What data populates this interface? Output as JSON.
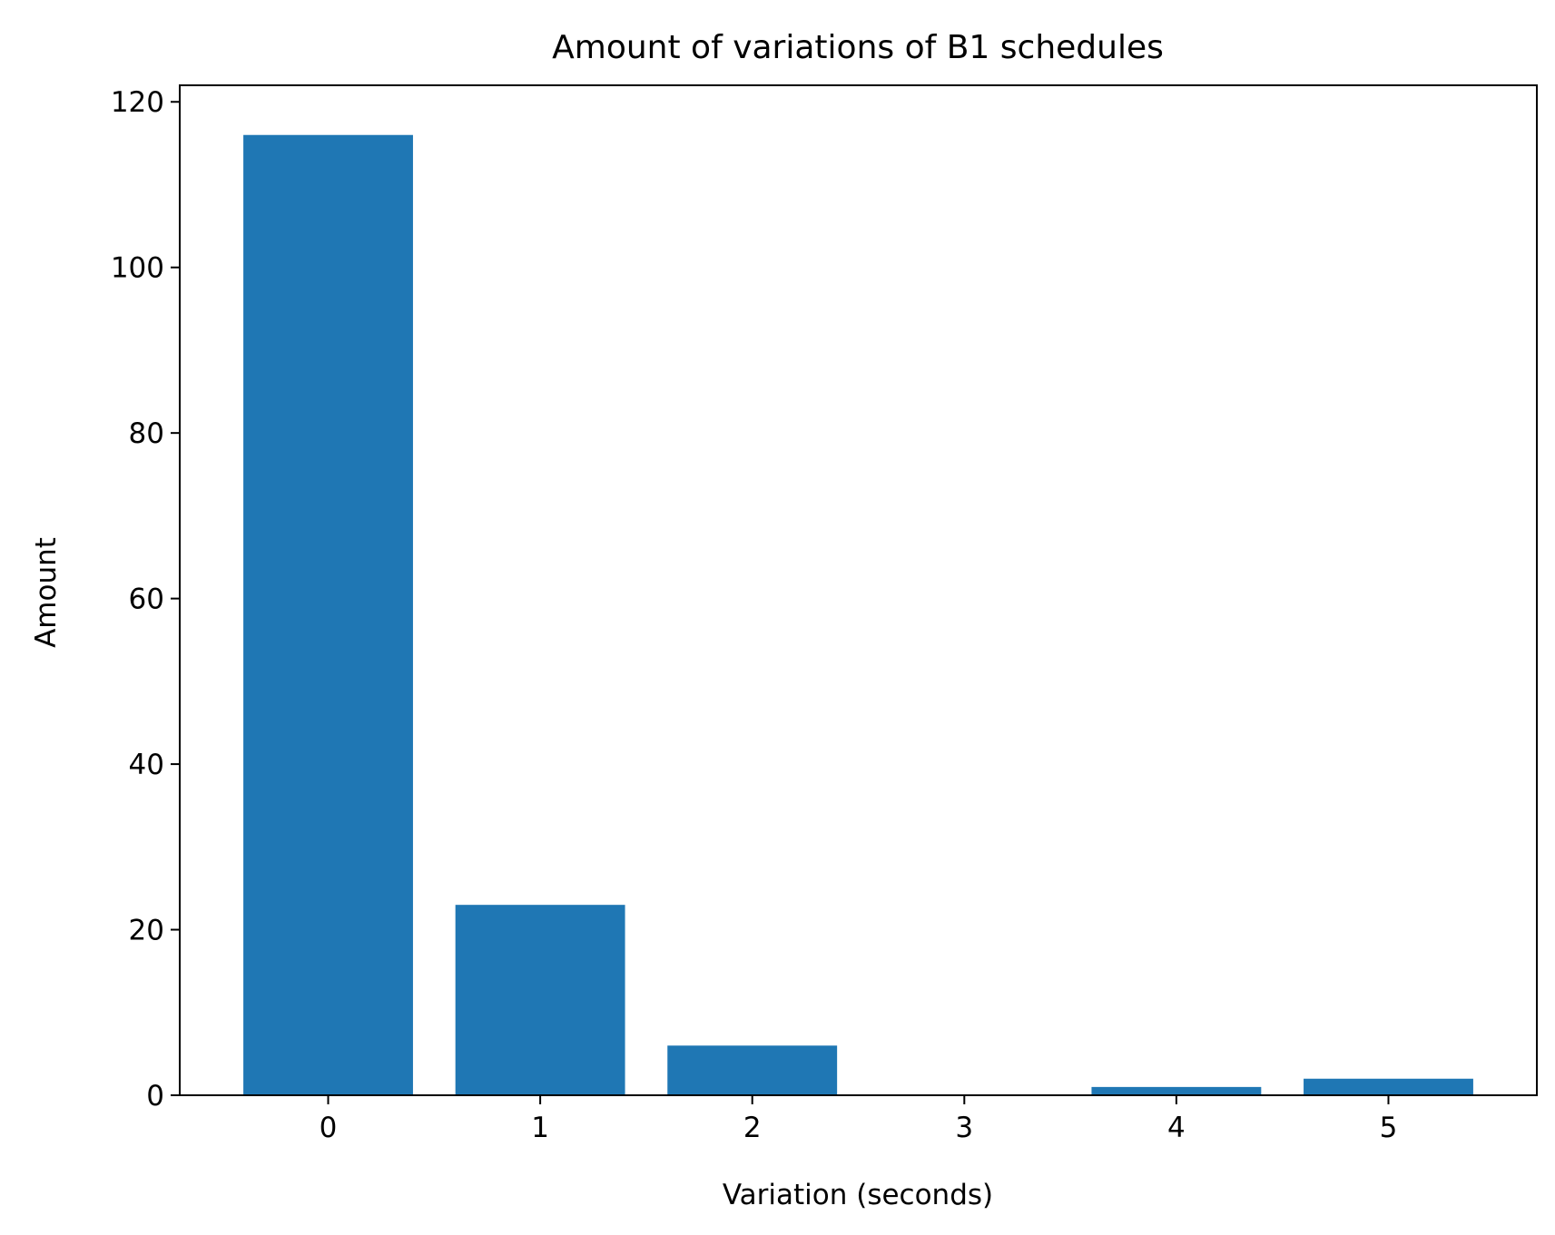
{
  "chart_data": {
    "type": "bar",
    "title": "Amount of variations of B1 schedules",
    "xlabel": "Variation (seconds)",
    "ylabel": "Amount",
    "categories": [
      "0",
      "1",
      "2",
      "3",
      "4",
      "5"
    ],
    "values": [
      116,
      23,
      6,
      0,
      1,
      2
    ],
    "xlim": [
      -0.7,
      5.7
    ],
    "ylim": [
      0,
      122
    ],
    "yticks": [
      0,
      20,
      40,
      60,
      80,
      100,
      120
    ],
    "grid": false,
    "bar_color": "#1f77b4"
  }
}
